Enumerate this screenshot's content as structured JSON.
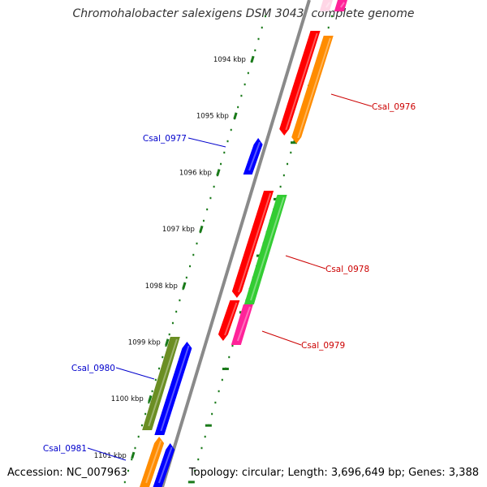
{
  "title": "Chromohalobacter salexigens DSM 3043, complete genome",
  "footer": {
    "accession": "Accession: NC_007963",
    "summary": "Topology: circular; Length: 3,696,649 bp; Genes: 3,388"
  },
  "ticks": [
    {
      "kbp": 1094,
      "label": "1094 kbp"
    },
    {
      "kbp": 1095,
      "label": "1095 kbp"
    },
    {
      "kbp": 1096,
      "label": "1096 kbp"
    },
    {
      "kbp": 1097,
      "label": "1097 kbp"
    },
    {
      "kbp": 1098,
      "label": "1098 kbp"
    },
    {
      "kbp": 1099,
      "label": "1099 kbp"
    },
    {
      "kbp": 1100,
      "label": "1100 kbp"
    },
    {
      "kbp": 1101,
      "label": "1101 kbp"
    }
  ],
  "gene_labels": [
    {
      "name": "Csal_0976",
      "strand": "forward",
      "color": "#cc0000"
    },
    {
      "name": "Csal_0977",
      "strand": "reverse",
      "color": "#0000cc"
    },
    {
      "name": "Csal_0978",
      "strand": "forward",
      "color": "#cc0000"
    },
    {
      "name": "Csal_0979",
      "strand": "forward",
      "color": "#cc0000"
    },
    {
      "name": "Csal_0980",
      "strand": "reverse",
      "color": "#0000cc"
    },
    {
      "name": "Csal_0981",
      "strand": "reverse",
      "color": "#0000cc"
    }
  ],
  "colors": {
    "backbone": "#8a8a8a",
    "tick": "#1a7a1a",
    "cds": "#ff0000",
    "orange": "#ff8c00",
    "green": "#33cc33",
    "pink": "#ff2299",
    "olive": "#6b8e23",
    "blue": "#0000ff"
  }
}
